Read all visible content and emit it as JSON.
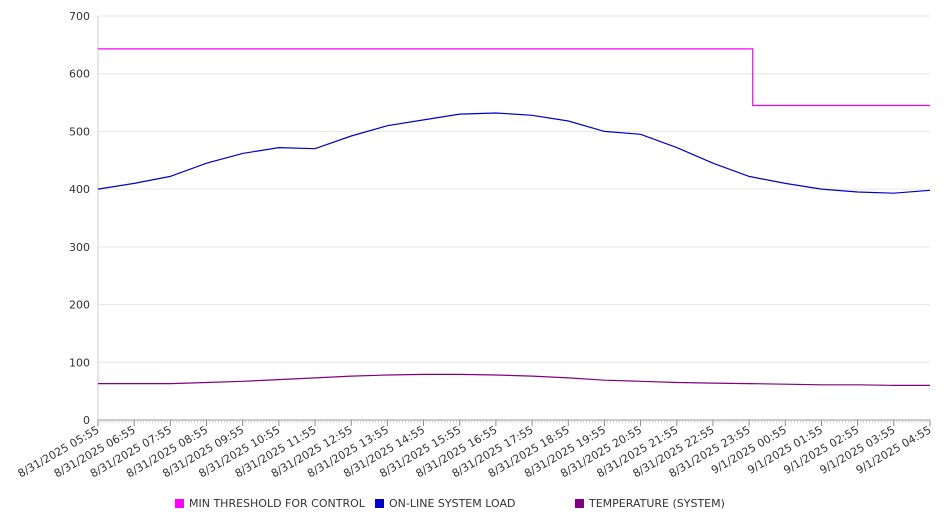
{
  "chart_data": {
    "type": "line",
    "title": "",
    "xlabel": "",
    "ylabel": "",
    "ylim": [
      0,
      700
    ],
    "yticks": [
      0,
      100,
      200,
      300,
      400,
      500,
      600,
      700
    ],
    "grid": true,
    "legend_position": "bottom",
    "categories": [
      "8/31/2025 05:55",
      "8/31/2025 06:55",
      "8/31/2025 07:55",
      "8/31/2025 08:55",
      "8/31/2025 09:55",
      "8/31/2025 10:55",
      "8/31/2025 11:55",
      "8/31/2025 12:55",
      "8/31/2025 13:55",
      "8/31/2025 14:55",
      "8/31/2025 15:55",
      "8/31/2025 16:55",
      "8/31/2025 17:55",
      "8/31/2025 18:55",
      "8/31/2025 19:55",
      "8/31/2025 20:55",
      "8/31/2025 21:55",
      "8/31/2025 22:55",
      "8/31/2025 23:55",
      "9/1/2025 00:55",
      "9/1/2025 01:55",
      "9/1/2025 02:55",
      "9/1/2025 03:55",
      "9/1/2025 04:55"
    ],
    "series": [
      {
        "name": "MIN THRESHOLD FOR CONTROL",
        "color": "#ff00ff",
        "values": [
          643,
          643,
          643,
          643,
          643,
          643,
          643,
          643,
          643,
          643,
          643,
          643,
          643,
          643,
          643,
          643,
          643,
          643,
          643,
          545,
          545,
          545,
          545,
          545
        ]
      },
      {
        "name": "ON-LINE SYSTEM LOAD",
        "color": "#0000cc",
        "values": [
          400,
          410,
          422,
          445,
          462,
          472,
          470,
          492,
          510,
          520,
          530,
          532,
          528,
          518,
          500,
          495,
          472,
          445,
          422,
          410,
          400,
          395,
          393,
          398
        ]
      },
      {
        "name": "TEMPERATURE (SYSTEM)",
        "color": "#800080",
        "values": [
          63,
          63,
          63,
          65,
          67,
          70,
          73,
          76,
          78,
          79,
          79,
          78,
          76,
          73,
          69,
          67,
          65,
          64,
          63,
          62,
          61,
          61,
          60,
          60
        ]
      }
    ]
  }
}
